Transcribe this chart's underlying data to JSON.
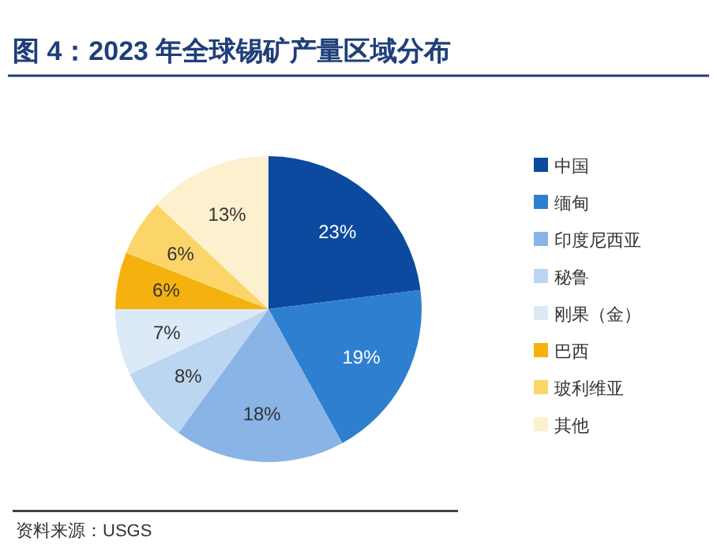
{
  "chart_data": {
    "type": "pie",
    "title": "图 4：2023 年全球锡矿产量区域分布",
    "categories": [
      "中国",
      "缅甸",
      "印度尼西亚",
      "秘鲁",
      "刚果（金）",
      "巴西",
      "玻利维亚",
      "其他"
    ],
    "values": [
      23,
      19,
      18,
      8,
      7,
      6,
      6,
      13
    ],
    "value_labels": [
      "23%",
      "19%",
      "18%",
      "8%",
      "7%",
      "6%",
      "6%",
      "13%"
    ],
    "colors": [
      "#0b4a9e",
      "#2f7fd0",
      "#8ab4e6",
      "#bcd5f0",
      "#dce9f7",
      "#f5b20f",
      "#fbd56a",
      "#fdf0cf"
    ],
    "legend": "right",
    "annotations": [
      "资料来源：USGS"
    ]
  }
}
